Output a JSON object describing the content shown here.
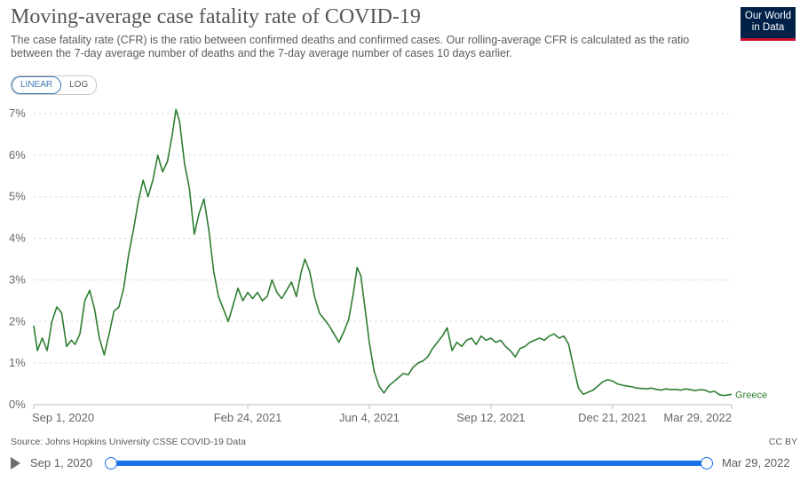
{
  "header": {
    "title": "Moving-average case fatality rate of COVID-19",
    "subtitle": "The case fatality rate (CFR) is the ratio between confirmed deaths and confirmed cases. Our rolling-average CFR is calculated as the ratio between the 7-day average number of deaths and the 7-day average number of cases 10 days earlier.",
    "logo_line1": "Our World",
    "logo_line2": "in Data"
  },
  "controls": {
    "linear_label": "LINEAR",
    "log_label": "LOG",
    "active": "LINEAR"
  },
  "footer": {
    "source": "Source: Johns Hopkins University CSSE COVID-19 Data",
    "license": "CC BY"
  },
  "timeline": {
    "start_label": "Sep 1, 2020",
    "end_label": "Mar 29, 2022"
  },
  "colors": {
    "series": "#2e7d32",
    "grid": "#dddddd",
    "axis_text": "#666666"
  },
  "chart_data": {
    "type": "line",
    "x_type": "date",
    "y_unit": "%",
    "ylim": [
      0,
      7
    ],
    "xlim": [
      "2020-09-01",
      "2022-03-29"
    ],
    "y_ticks": [
      0,
      1,
      2,
      3,
      4,
      5,
      6,
      7
    ],
    "y_tick_labels": [
      "0%",
      "1%",
      "2%",
      "3%",
      "4%",
      "5%",
      "6%",
      "7%"
    ],
    "x_ticks": [
      "2020-09-01",
      "2021-02-24",
      "2021-06-04",
      "2021-09-12",
      "2021-12-21",
      "2022-03-29"
    ],
    "x_tick_labels": [
      "Sep 1, 2020",
      "Feb 24, 2021",
      "Jun 4, 2021",
      "Sep 12, 2021",
      "Dec 21, 2021",
      "Mar 29, 2022"
    ],
    "grid": "horizontal dashed",
    "legend": "inline label at line end",
    "series": [
      {
        "name": "Greece",
        "points": [
          [
            "2020-09-01",
            1.9
          ],
          [
            "2020-09-04",
            1.3
          ],
          [
            "2020-09-08",
            1.6
          ],
          [
            "2020-09-12",
            1.3
          ],
          [
            "2020-09-16",
            2.0
          ],
          [
            "2020-09-20",
            2.35
          ],
          [
            "2020-09-24",
            2.2
          ],
          [
            "2020-09-28",
            1.4
          ],
          [
            "2020-10-02",
            1.55
          ],
          [
            "2020-10-05",
            1.45
          ],
          [
            "2020-10-09",
            1.7
          ],
          [
            "2020-10-13",
            2.5
          ],
          [
            "2020-10-17",
            2.75
          ],
          [
            "2020-10-21",
            2.3
          ],
          [
            "2020-10-25",
            1.6
          ],
          [
            "2020-10-29",
            1.2
          ],
          [
            "2020-11-02",
            1.7
          ],
          [
            "2020-11-06",
            2.25
          ],
          [
            "2020-11-10",
            2.35
          ],
          [
            "2020-11-14",
            2.8
          ],
          [
            "2020-11-18",
            3.6
          ],
          [
            "2020-11-22",
            4.2
          ],
          [
            "2020-11-26",
            4.9
          ],
          [
            "2020-11-30",
            5.4
          ],
          [
            "2020-12-04",
            5.0
          ],
          [
            "2020-12-08",
            5.4
          ],
          [
            "2020-12-12",
            6.0
          ],
          [
            "2020-12-16",
            5.6
          ],
          [
            "2020-12-20",
            5.85
          ],
          [
            "2020-12-24",
            6.5
          ],
          [
            "2020-12-27",
            7.1
          ],
          [
            "2020-12-30",
            6.8
          ],
          [
            "2021-01-03",
            5.8
          ],
          [
            "2021-01-07",
            5.2
          ],
          [
            "2021-01-11",
            4.1
          ],
          [
            "2021-01-15",
            4.6
          ],
          [
            "2021-01-19",
            4.95
          ],
          [
            "2021-01-23",
            4.2
          ],
          [
            "2021-01-27",
            3.2
          ],
          [
            "2021-01-31",
            2.6
          ],
          [
            "2021-02-04",
            2.3
          ],
          [
            "2021-02-08",
            2.0
          ],
          [
            "2021-02-12",
            2.4
          ],
          [
            "2021-02-16",
            2.8
          ],
          [
            "2021-02-20",
            2.5
          ],
          [
            "2021-02-24",
            2.7
          ],
          [
            "2021-02-28",
            2.55
          ],
          [
            "2021-03-04",
            2.7
          ],
          [
            "2021-03-08",
            2.5
          ],
          [
            "2021-03-12",
            2.6
          ],
          [
            "2021-03-16",
            3.0
          ],
          [
            "2021-03-20",
            2.7
          ],
          [
            "2021-03-24",
            2.55
          ],
          [
            "2021-03-28",
            2.75
          ],
          [
            "2021-04-01",
            2.95
          ],
          [
            "2021-04-05",
            2.6
          ],
          [
            "2021-04-09",
            3.2
          ],
          [
            "2021-04-12",
            3.5
          ],
          [
            "2021-04-16",
            3.2
          ],
          [
            "2021-04-20",
            2.6
          ],
          [
            "2021-04-24",
            2.2
          ],
          [
            "2021-04-28",
            2.05
          ],
          [
            "2021-05-02",
            1.9
          ],
          [
            "2021-05-06",
            1.7
          ],
          [
            "2021-05-10",
            1.5
          ],
          [
            "2021-05-14",
            1.75
          ],
          [
            "2021-05-18",
            2.05
          ],
          [
            "2021-05-22",
            2.7
          ],
          [
            "2021-05-25",
            3.3
          ],
          [
            "2021-05-28",
            3.1
          ],
          [
            "2021-06-01",
            2.2
          ],
          [
            "2021-06-04",
            1.5
          ],
          [
            "2021-06-08",
            0.8
          ],
          [
            "2021-06-12",
            0.45
          ],
          [
            "2021-06-16",
            0.28
          ],
          [
            "2021-06-20",
            0.45
          ],
          [
            "2021-06-24",
            0.55
          ],
          [
            "2021-06-28",
            0.65
          ],
          [
            "2021-07-02",
            0.75
          ],
          [
            "2021-07-06",
            0.72
          ],
          [
            "2021-07-10",
            0.9
          ],
          [
            "2021-07-14",
            1.0
          ],
          [
            "2021-07-18",
            1.05
          ],
          [
            "2021-07-22",
            1.15
          ],
          [
            "2021-07-26",
            1.35
          ],
          [
            "2021-07-30",
            1.5
          ],
          [
            "2021-08-03",
            1.65
          ],
          [
            "2021-08-07",
            1.85
          ],
          [
            "2021-08-11",
            1.3
          ],
          [
            "2021-08-15",
            1.5
          ],
          [
            "2021-08-19",
            1.4
          ],
          [
            "2021-08-23",
            1.55
          ],
          [
            "2021-08-27",
            1.6
          ],
          [
            "2021-08-31",
            1.45
          ],
          [
            "2021-09-04",
            1.65
          ],
          [
            "2021-09-08",
            1.55
          ],
          [
            "2021-09-12",
            1.6
          ],
          [
            "2021-09-16",
            1.5
          ],
          [
            "2021-09-20",
            1.55
          ],
          [
            "2021-09-24",
            1.4
          ],
          [
            "2021-09-28",
            1.3
          ],
          [
            "2021-10-02",
            1.15
          ],
          [
            "2021-10-06",
            1.35
          ],
          [
            "2021-10-10",
            1.4
          ],
          [
            "2021-10-14",
            1.5
          ],
          [
            "2021-10-18",
            1.55
          ],
          [
            "2021-10-22",
            1.6
          ],
          [
            "2021-10-26",
            1.55
          ],
          [
            "2021-10-30",
            1.65
          ],
          [
            "2021-11-03",
            1.7
          ],
          [
            "2021-11-07",
            1.6
          ],
          [
            "2021-11-11",
            1.65
          ],
          [
            "2021-11-15",
            1.45
          ],
          [
            "2021-11-19",
            0.9
          ],
          [
            "2021-11-23",
            0.4
          ],
          [
            "2021-11-27",
            0.25
          ],
          [
            "2021-12-01",
            0.3
          ],
          [
            "2021-12-05",
            0.35
          ],
          [
            "2021-12-09",
            0.45
          ],
          [
            "2021-12-13",
            0.55
          ],
          [
            "2021-12-17",
            0.6
          ],
          [
            "2021-12-21",
            0.57
          ],
          [
            "2021-12-25",
            0.5
          ],
          [
            "2021-12-29",
            0.47
          ],
          [
            "2022-01-02",
            0.45
          ],
          [
            "2022-01-06",
            0.43
          ],
          [
            "2022-01-10",
            0.4
          ],
          [
            "2022-01-14",
            0.39
          ],
          [
            "2022-01-18",
            0.38
          ],
          [
            "2022-01-22",
            0.4
          ],
          [
            "2022-01-26",
            0.37
          ],
          [
            "2022-01-30",
            0.35
          ],
          [
            "2022-02-03",
            0.38
          ],
          [
            "2022-02-07",
            0.36
          ],
          [
            "2022-02-11",
            0.37
          ],
          [
            "2022-02-15",
            0.35
          ],
          [
            "2022-02-19",
            0.38
          ],
          [
            "2022-02-23",
            0.36
          ],
          [
            "2022-02-27",
            0.34
          ],
          [
            "2022-03-03",
            0.36
          ],
          [
            "2022-03-07",
            0.35
          ],
          [
            "2022-03-11",
            0.3
          ],
          [
            "2022-03-15",
            0.32
          ],
          [
            "2022-03-19",
            0.24
          ],
          [
            "2022-03-23",
            0.22
          ],
          [
            "2022-03-29",
            0.25
          ]
        ]
      }
    ]
  }
}
